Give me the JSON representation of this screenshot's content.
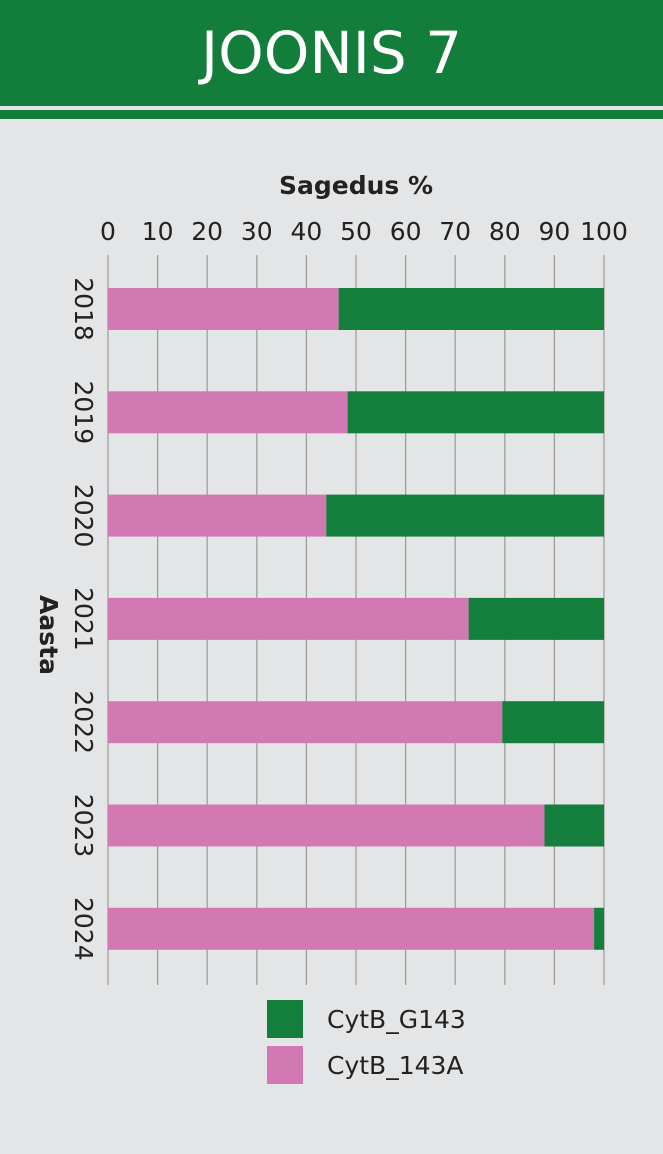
{
  "header": {
    "title": "JOONIS 7"
  },
  "colors": {
    "header_bg": "#137e3b",
    "page_bg": "#e4e5e6",
    "green": "#147f3c",
    "pink": "#d279b4"
  },
  "chart_data": {
    "type": "bar",
    "orientation": "horizontal",
    "stacked": true,
    "title": "",
    "xlabel": "Sagedus %",
    "ylabel": "Aasta",
    "xlim": [
      0,
      100
    ],
    "xticks": [
      0,
      10,
      20,
      30,
      40,
      50,
      60,
      70,
      80,
      90,
      100
    ],
    "categories": [
      "2018",
      "2019",
      "2020",
      "2021",
      "2022",
      "2023",
      "2024"
    ],
    "series": [
      {
        "name": "CytB_143A",
        "color": "#d279b4",
        "values": [
          46.5,
          48.3,
          44,
          72.7,
          79.5,
          88,
          98
        ]
      },
      {
        "name": "CytB_G143",
        "color": "#147f3c",
        "values": [
          53.5,
          51.7,
          56,
          27.3,
          20.5,
          12,
          2
        ]
      }
    ],
    "grid": true,
    "legend_position": "bottom"
  },
  "legend": {
    "items": [
      {
        "label": "CytB_G143",
        "color": "#147f3c"
      },
      {
        "label": "CytB_143A",
        "color": "#d279b4"
      }
    ]
  }
}
